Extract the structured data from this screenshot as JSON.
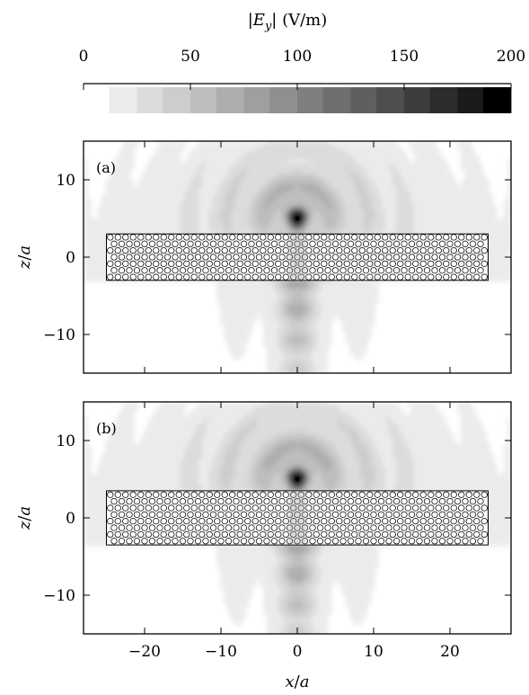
{
  "chart_data": {
    "type": "heatmap",
    "colorbar": {
      "title_parts": [
        "|",
        "E",
        "y",
        "| (V/m)"
      ],
      "range": [
        0,
        200
      ],
      "tick_values": [
        0,
        50,
        100,
        150,
        200
      ],
      "tick_labels": [
        "0",
        "50",
        "100",
        "150",
        "200"
      ],
      "levels": [
        12,
        25,
        37,
        50,
        62,
        75,
        87,
        100,
        112,
        125,
        137,
        150,
        162,
        175,
        187,
        200
      ],
      "colors": [
        "#ebebeb",
        "#dcdcdc",
        "#cdcdcd",
        "#bebebe",
        "#aeaeae",
        "#9f9f9f",
        "#8f8f8f",
        "#7f7f7f",
        "#6f6f6f",
        "#5f5f5f",
        "#4e4e4e",
        "#3d3d3d",
        "#2c2c2c",
        "#1b1b1b",
        "#000000"
      ]
    },
    "xlabel": {
      "var": "x",
      "unit": "a"
    },
    "ylabel": {
      "var": "z",
      "unit": "a"
    },
    "xlim": [
      -28,
      28
    ],
    "ylim": [
      -15,
      15
    ],
    "x_ticks": [
      -20,
      -10,
      0,
      10,
      20
    ],
    "x_tick_labels": [
      "−20",
      "−10",
      "0",
      "10",
      "20"
    ],
    "y_ticks": [
      -10,
      0,
      10
    ],
    "y_tick_labels": [
      "−10",
      "0",
      "10"
    ],
    "panels": [
      {
        "label": "(a)",
        "slab_x": [
          -25,
          25
        ],
        "slab_z": [
          -3,
          3
        ],
        "source": [
          0,
          5
        ],
        "peak": 200
      },
      {
        "label": "(b)",
        "slab_x": [
          -25,
          25
        ],
        "slab_z": [
          -3.5,
          3.5
        ],
        "source": [
          0,
          5
        ],
        "peak": 200
      }
    ]
  }
}
